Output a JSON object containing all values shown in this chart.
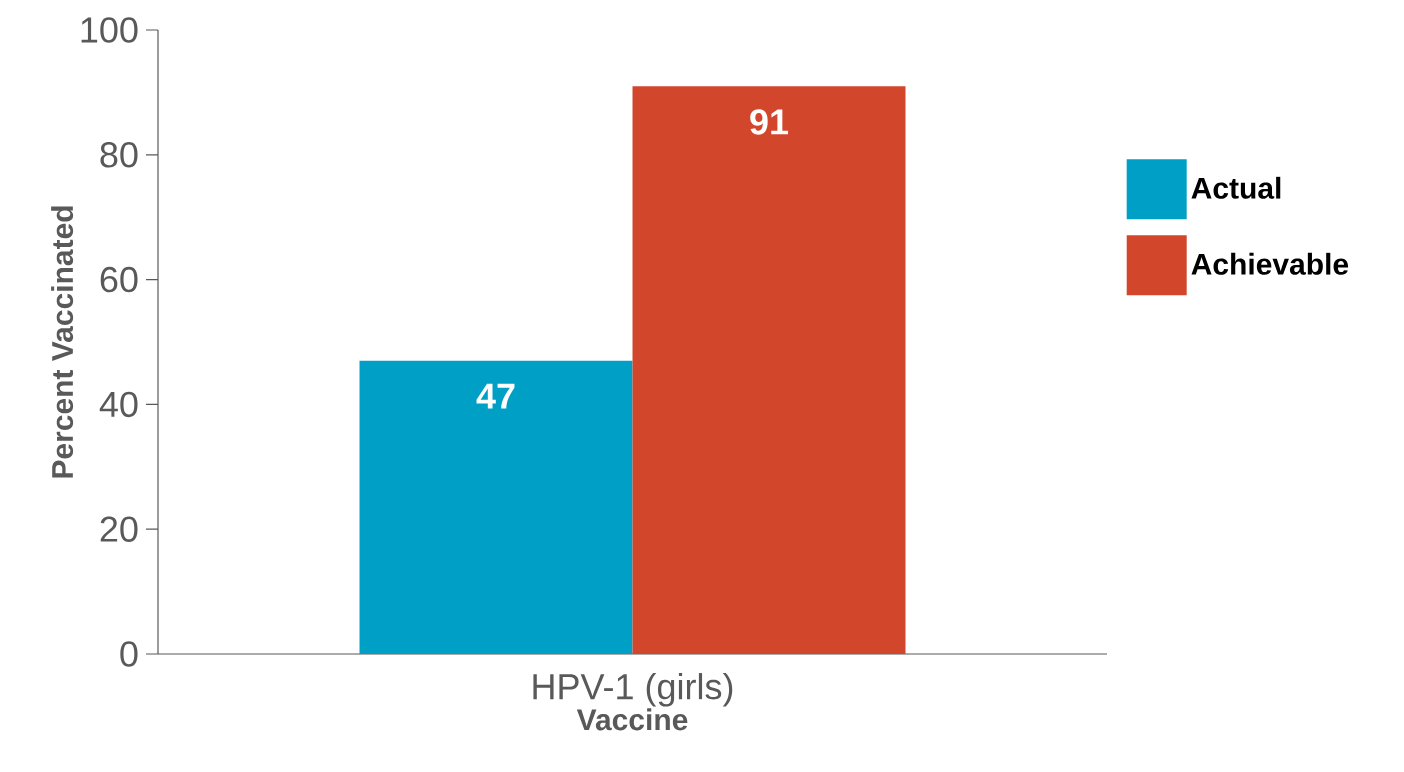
{
  "chart_data": {
    "type": "bar",
    "xlabel": "Vaccine",
    "ylabel": "Percent Vaccinated",
    "categories": [
      "HPV-1 (girls)"
    ],
    "series": [
      {
        "name": "Actual",
        "color": "#00a0c6",
        "values": [
          47
        ]
      },
      {
        "name": "Achievable",
        "color": "#d2472b",
        "values": [
          91
        ]
      }
    ],
    "ylim": [
      0,
      100
    ],
    "yticks": [
      0,
      20,
      40,
      60,
      80,
      100
    ],
    "grid": false,
    "legend": "right",
    "data_labels": true
  }
}
